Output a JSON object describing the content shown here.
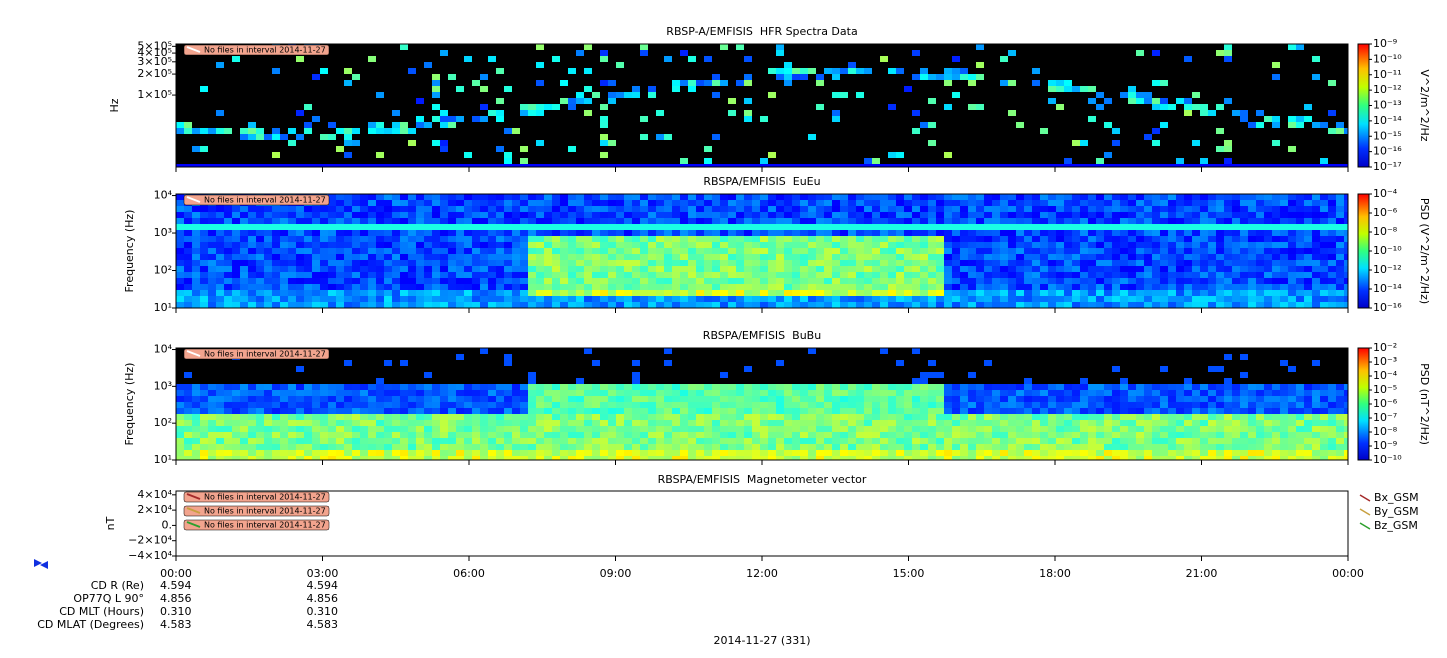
{
  "chart_data": [
    {
      "type": "spectrogram",
      "title": "RBSP-A/EMFISIS  HFR Spectra Data",
      "y_label": "Hz",
      "y_log": true,
      "ylim": [
        9300,
        540000
      ],
      "yticks": [
        {
          "value": 100000,
          "label": "1×10⁵"
        },
        {
          "value": 200000,
          "label": "2×10⁵"
        },
        {
          "value": 300000,
          "label": "3×10⁵"
        },
        {
          "value": 400000,
          "label": "4×10⁵"
        },
        {
          "value": 500000,
          "label": "5×10⁵"
        }
      ],
      "z_label": "V^2/m^2/Hz",
      "z_log": true,
      "zlim": [
        1e-17,
        1e-09
      ],
      "zticks": [
        {
          "value": 1e-09,
          "label": "10⁻⁹"
        },
        {
          "value": 1e-10,
          "label": "10⁻¹⁰"
        },
        {
          "value": 1e-11,
          "label": "10⁻¹¹"
        },
        {
          "value": 1e-12,
          "label": "10⁻¹²"
        },
        {
          "value": 1e-13,
          "label": "10⁻¹³"
        },
        {
          "value": 1e-14,
          "label": "10⁻¹⁴"
        },
        {
          "value": 1e-15,
          "label": "10⁻¹⁵"
        },
        {
          "value": 1e-16,
          "label": "10⁻¹⁶"
        },
        {
          "value": 1e-17,
          "label": "10⁻¹⁷"
        }
      ],
      "notes": [
        "No files in interval 2014-11-27"
      ]
    },
    {
      "type": "spectrogram",
      "title": "RBSPA/EMFISIS  EuEu",
      "y_label": "Frequency (Hz)",
      "y_log": true,
      "ylim": [
        10,
        11000
      ],
      "yticks": [
        {
          "value": 10,
          "label": "10¹"
        },
        {
          "value": 100,
          "label": "10²"
        },
        {
          "value": 1000,
          "label": "10³"
        },
        {
          "value": 10000,
          "label": "10⁴"
        }
      ],
      "z_label": "PSD (V^2/m^2/Hz)",
      "z_log": true,
      "zlim": [
        1e-16,
        0.0001
      ],
      "zticks": [
        {
          "value": 0.0001,
          "label": "10⁻⁴"
        },
        {
          "value": 1e-06,
          "label": "10⁻⁶"
        },
        {
          "value": 1e-08,
          "label": "10⁻⁸"
        },
        {
          "value": 1e-10,
          "label": "10⁻¹⁰"
        },
        {
          "value": 1e-12,
          "label": "10⁻¹²"
        },
        {
          "value": 1e-14,
          "label": "10⁻¹⁴"
        },
        {
          "value": 1e-16,
          "label": "10⁻¹⁶"
        }
      ],
      "notes": [
        "No files in interval 2014-11-27"
      ]
    },
    {
      "type": "spectrogram",
      "title": "RBSPA/EMFISIS  BuBu",
      "y_label": "Frequency (Hz)",
      "y_log": true,
      "ylim": [
        10,
        11000
      ],
      "yticks": [
        {
          "value": 10,
          "label": "10¹"
        },
        {
          "value": 100,
          "label": "10²"
        },
        {
          "value": 1000,
          "label": "10³"
        },
        {
          "value": 10000,
          "label": "10⁴"
        }
      ],
      "z_label": "PSD (nT^2/Hz)",
      "z_log": true,
      "zlim": [
        1e-10,
        0.01
      ],
      "zticks": [
        {
          "value": 0.01,
          "label": "10⁻²"
        },
        {
          "value": 0.001,
          "label": "10⁻³"
        },
        {
          "value": 0.0001,
          "label": "10⁻⁴"
        },
        {
          "value": 1e-05,
          "label": "10⁻⁵"
        },
        {
          "value": 1e-06,
          "label": "10⁻⁶"
        },
        {
          "value": 1e-07,
          "label": "10⁻⁷"
        },
        {
          "value": 1e-08,
          "label": "10⁻⁸"
        },
        {
          "value": 1e-09,
          "label": "10⁻⁹"
        },
        {
          "value": 1e-10,
          "label": "10⁻¹⁰"
        }
      ],
      "notes": [
        "No files in interval 2014-11-27"
      ]
    },
    {
      "type": "line",
      "title": "RBSPA/EMFISIS  Magnetometer vector",
      "y_label": "nT",
      "ylim": [
        -40000,
        45000
      ],
      "yticks": [
        {
          "value": 40000,
          "label": "4×10⁴"
        },
        {
          "value": 20000,
          "label": "2×10⁴"
        },
        {
          "value": 0,
          "label": "0."
        },
        {
          "value": -20000,
          "label": "−2×10⁴"
        },
        {
          "value": -40000,
          "label": "−4×10⁴"
        }
      ],
      "series": [
        {
          "name": "Bx_GSM",
          "color": "#a52a2a"
        },
        {
          "name": "By_GSM",
          "color": "#c8a040"
        },
        {
          "name": "Bz_GSM",
          "color": "#2ea02e"
        }
      ],
      "notes": [
        "No files in interval 2014-11-27",
        "No files in interval 2014-11-27",
        "No files in interval 2014-11-27"
      ]
    }
  ],
  "x_axis": {
    "xlim": [
      0,
      24
    ],
    "xticks": [
      {
        "value": 0,
        "label": "00:00"
      },
      {
        "value": 3,
        "label": "03:00"
      },
      {
        "value": 6,
        "label": "06:00"
      },
      {
        "value": 9,
        "label": "09:00"
      },
      {
        "value": 12,
        "label": "12:00"
      },
      {
        "value": 15,
        "label": "15:00"
      },
      {
        "value": 18,
        "label": "18:00"
      },
      {
        "value": 21,
        "label": "21:00"
      },
      {
        "value": 24,
        "label": "00:00"
      }
    ],
    "label": "2014-11-27 (331)"
  },
  "ephemeris": {
    "rows": [
      {
        "label": "CD R (Re)",
        "values": [
          "4.594",
          "4.594"
        ]
      },
      {
        "label": "OP77Q L 90°",
        "values": [
          "4.856",
          "4.856"
        ]
      },
      {
        "label": "CD MLT (Hours)",
        "values": [
          "0.310",
          "0.310"
        ]
      },
      {
        "label": "CD MLAT (Degrees)",
        "values": [
          "4.583",
          "4.583"
        ]
      }
    ]
  }
}
